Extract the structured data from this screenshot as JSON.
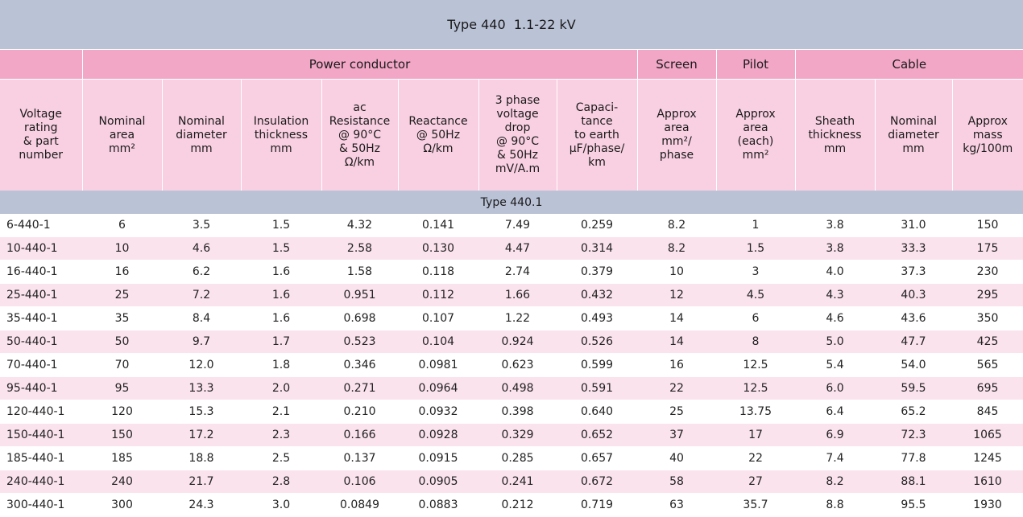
{
  "title": "Type 440  1.1-22 kV",
  "groups": [
    {
      "label": "",
      "span": 1
    },
    {
      "label": "Power conductor",
      "span": 7
    },
    {
      "label": "Screen",
      "span": 1
    },
    {
      "label": "Pilot",
      "span": 1
    },
    {
      "label": "Cable",
      "span": 3
    }
  ],
  "columns": [
    "Voltage\nrating\n& part\nnumber",
    "Nominal\narea\nmm²",
    "Nominal\ndiameter\nmm",
    "Insulation\nthickness\nmm",
    "ac\nResistance\n@ 90°C\n& 50Hz\nΩ/km",
    "Reactance\n@ 50Hz\nΩ/km",
    "3 phase\nvoltage\ndrop\n@ 90°C\n& 50Hz\nmV/A.m",
    "Capaci-\ntance\nto earth\nμF/phase/\nkm",
    "Approx\narea\nmm²/\nphase",
    "Approx\narea\n(each)\nmm²",
    "Sheath\nthickness\nmm",
    "Nominal\ndiameter\nmm",
    "Approx\nmass\nkg/100m"
  ],
  "section_label": "Type 440.1",
  "rows": [
    [
      "6-440-1",
      "6",
      "3.5",
      "1.5",
      "4.32",
      "0.141",
      "7.49",
      "0.259",
      "8.2",
      "1",
      "3.8",
      "31.0",
      "150"
    ],
    [
      "10-440-1",
      "10",
      "4.6",
      "1.5",
      "2.58",
      "0.130",
      "4.47",
      "0.314",
      "8.2",
      "1.5",
      "3.8",
      "33.3",
      "175"
    ],
    [
      "16-440-1",
      "16",
      "6.2",
      "1.6",
      "1.58",
      "0.118",
      "2.74",
      "0.379",
      "10",
      "3",
      "4.0",
      "37.3",
      "230"
    ],
    [
      "25-440-1",
      "25",
      "7.2",
      "1.6",
      "0.951",
      "0.112",
      "1.66",
      "0.432",
      "12",
      "4.5",
      "4.3",
      "40.3",
      "295"
    ],
    [
      "35-440-1",
      "35",
      "8.4",
      "1.6",
      "0.698",
      "0.107",
      "1.22",
      "0.493",
      "14",
      "6",
      "4.6",
      "43.6",
      "350"
    ],
    [
      "50-440-1",
      "50",
      "9.7",
      "1.7",
      "0.523",
      "0.104",
      "0.924",
      "0.526",
      "14",
      "8",
      "5.0",
      "47.7",
      "425"
    ],
    [
      "70-440-1",
      "70",
      "12.0",
      "1.8",
      "0.346",
      "0.0981",
      "0.623",
      "0.599",
      "16",
      "12.5",
      "5.4",
      "54.0",
      "565"
    ],
    [
      "95-440-1",
      "95",
      "13.3",
      "2.0",
      "0.271",
      "0.0964",
      "0.498",
      "0.591",
      "22",
      "12.5",
      "6.0",
      "59.5",
      "695"
    ],
    [
      "120-440-1",
      "120",
      "15.3",
      "2.1",
      "0.210",
      "0.0932",
      "0.398",
      "0.640",
      "25",
      "13.75",
      "6.4",
      "65.2",
      "845"
    ],
    [
      "150-440-1",
      "150",
      "17.2",
      "2.3",
      "0.166",
      "0.0928",
      "0.329",
      "0.652",
      "37",
      "17",
      "6.9",
      "72.3",
      "1065"
    ],
    [
      "185-440-1",
      "185",
      "18.8",
      "2.5",
      "0.137",
      "0.0915",
      "0.285",
      "0.657",
      "40",
      "22",
      "7.4",
      "77.8",
      "1245"
    ],
    [
      "240-440-1",
      "240",
      "21.7",
      "2.8",
      "0.106",
      "0.0905",
      "0.241",
      "0.672",
      "58",
      "27",
      "8.2",
      "88.1",
      "1610"
    ],
    [
      "300-440-1",
      "300",
      "24.3",
      "3.0",
      "0.0849",
      "0.0883",
      "0.212",
      "0.719",
      "63",
      "35.7",
      "8.8",
      "95.5",
      "1930"
    ]
  ],
  "colors": {
    "title_bar": "#bac2d6",
    "group_header": "#f2a7c7",
    "column_header": "#f9d0e2",
    "row_alt": "#fbe3ee"
  }
}
